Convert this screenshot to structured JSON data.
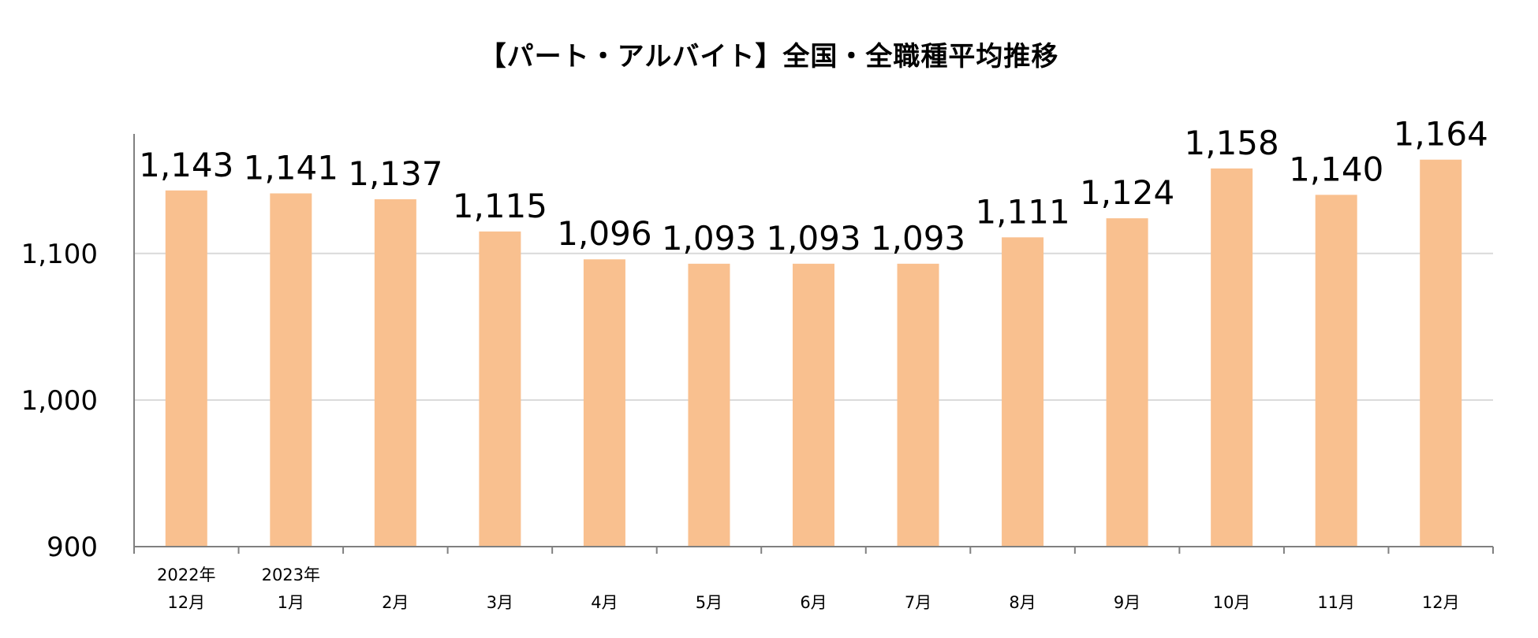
{
  "chart_data": {
    "type": "bar",
    "title": "【パート・アルバイト】全国・全職種平均推移",
    "categories": [
      [
        "2022年",
        "12月"
      ],
      [
        "2023年",
        "1月"
      ],
      [
        "",
        "2月"
      ],
      [
        "",
        "3月"
      ],
      [
        "",
        "4月"
      ],
      [
        "",
        "5月"
      ],
      [
        "",
        "6月"
      ],
      [
        "",
        "7月"
      ],
      [
        "",
        "8月"
      ],
      [
        "",
        "9月"
      ],
      [
        "",
        "10月"
      ],
      [
        "",
        "11月"
      ],
      [
        "",
        "12月"
      ]
    ],
    "values": [
      1143,
      1141,
      1137,
      1115,
      1096,
      1093,
      1093,
      1093,
      1111,
      1124,
      1158,
      1140,
      1164
    ],
    "data_labels": [
      "1,143",
      "1,141",
      "1,137",
      "1,115",
      "1,096",
      "1,093",
      "1,093",
      "1,093",
      "1,111",
      "1,124",
      "1,158",
      "1,140",
      "1,164"
    ],
    "ylim": [
      900,
      1180
    ],
    "yticks": [
      900,
      1000,
      1100
    ],
    "ytick_labels": [
      "900",
      "1,000",
      "1,100"
    ],
    "xlabel": "",
    "ylabel": "",
    "grid": true,
    "bar_color": "#F9C08F",
    "grid_color": "#D9D9D9",
    "axis_color": "#808080"
  }
}
